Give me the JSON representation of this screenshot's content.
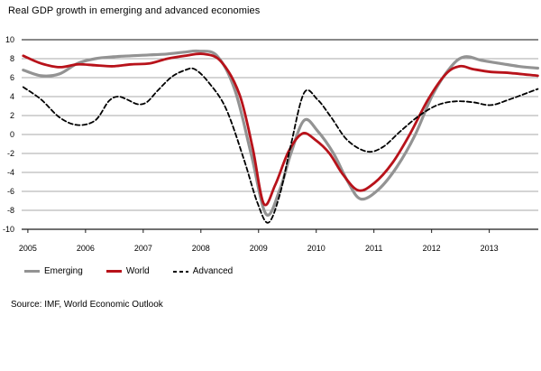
{
  "title": "Real GDP growth in emerging and advanced economies",
  "footnote": "Source: IMF, World Economic Outlook",
  "colors": {
    "red": "#b8121a",
    "gray": "#939393",
    "black": "#000000",
    "grid": "#a9a9a9",
    "grid_top": "#616161",
    "axis": "#1a1a1a",
    "tick_text": "#000000"
  },
  "legend": {
    "items": [
      {
        "label": "Emerging",
        "color": "#939393",
        "dash": "solid"
      },
      {
        "label": "World",
        "color": "#b8121a",
        "dash": "solid"
      },
      {
        "label": "Advanced",
        "color": "#000000",
        "dash": "dashed"
      }
    ]
  },
  "chart_data": {
    "type": "line",
    "title": "Real GDP growth in emerging and advanced economies",
    "xlabel": "",
    "ylabel": "",
    "grid": true,
    "legend_position": "bottom",
    "xlim": [
      2004.9,
      2013.85
    ],
    "ylim": [
      -10,
      10
    ],
    "x_ticks": [
      2005,
      2006,
      2007,
      2008,
      2009,
      2010,
      2011,
      2012,
      2013
    ],
    "y_ticks": [
      10,
      8,
      6,
      4,
      2,
      0,
      -2,
      -4,
      -6,
      -8,
      -10
    ],
    "series": [
      {
        "name": "Emerging",
        "color": "#939393",
        "width": 3.2,
        "dash": "",
        "x": [
          2004.92,
          2005.23,
          2005.55,
          2005.86,
          2006.17,
          2006.48,
          2006.79,
          2007.11,
          2007.42,
          2007.73,
          2007.96,
          2008.28,
          2008.59,
          2008.87,
          2009.13,
          2009.37,
          2009.56,
          2009.79,
          2010.02,
          2010.3,
          2010.54,
          2010.77,
          2011.08,
          2011.4,
          2011.71,
          2012.02,
          2012.33,
          2012.57,
          2012.88,
          2013.19,
          2013.5,
          2013.84
        ],
        "y": [
          6.8,
          6.2,
          6.4,
          7.5,
          8.0,
          8.2,
          8.3,
          8.4,
          8.5,
          8.7,
          8.8,
          8.3,
          4.7,
          -2.0,
          -8.4,
          -5.8,
          -2.0,
          1.5,
          0.4,
          -2.0,
          -4.9,
          -6.8,
          -5.8,
          -3.4,
          -0.1,
          4.2,
          7.1,
          8.2,
          7.8,
          7.5,
          7.2,
          7.0
        ]
      },
      {
        "name": "World",
        "color": "#b8121a",
        "width": 2.8,
        "dash": "",
        "x": [
          2004.92,
          2005.23,
          2005.55,
          2005.86,
          2006.17,
          2006.48,
          2006.79,
          2007.11,
          2007.42,
          2007.73,
          2008.04,
          2008.35,
          2008.67,
          2008.9,
          2009.09,
          2009.29,
          2009.52,
          2009.76,
          2009.99,
          2010.23,
          2010.46,
          2010.73,
          2011.01,
          2011.32,
          2011.63,
          2011.94,
          2012.25,
          2012.49,
          2012.72,
          2013.03,
          2013.35,
          2013.84
        ],
        "y": [
          8.3,
          7.5,
          7.1,
          7.4,
          7.3,
          7.2,
          7.4,
          7.5,
          8.0,
          8.3,
          8.5,
          7.7,
          4.2,
          -1.5,
          -7.3,
          -5.3,
          -1.8,
          0.1,
          -0.6,
          -2.0,
          -4.2,
          -5.9,
          -5.1,
          -3.0,
          0.1,
          3.7,
          6.4,
          7.2,
          6.9,
          6.6,
          6.5,
          6.2
        ]
      },
      {
        "name": "Advanced",
        "color": "#000000",
        "width": 1.8,
        "dash": "5 3",
        "x": [
          2004.92,
          2005.23,
          2005.55,
          2005.86,
          2006.17,
          2006.4,
          2006.56,
          2006.72,
          2006.9,
          2007.06,
          2007.26,
          2007.5,
          2007.73,
          2007.89,
          2008.12,
          2008.43,
          2008.74,
          2008.98,
          2009.17,
          2009.37,
          2009.56,
          2009.79,
          2010.02,
          2010.26,
          2010.54,
          2010.88,
          2011.16,
          2011.47,
          2011.79,
          2012.1,
          2012.41,
          2012.72,
          2013.03,
          2013.35,
          2013.84
        ],
        "y": [
          5.0,
          3.7,
          1.8,
          1.0,
          1.5,
          3.5,
          4.0,
          3.7,
          3.2,
          3.4,
          4.7,
          6.1,
          6.8,
          6.9,
          5.6,
          2.8,
          -2.5,
          -7.2,
          -9.3,
          -6.3,
          -1.1,
          4.4,
          3.7,
          1.8,
          -0.6,
          -1.8,
          -1.3,
          0.4,
          2.0,
          3.1,
          3.5,
          3.4,
          3.1,
          3.7,
          4.8
        ]
      }
    ]
  }
}
